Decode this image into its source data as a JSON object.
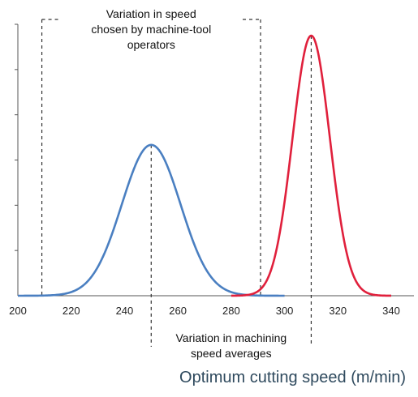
{
  "chart_data": {
    "type": "line",
    "xlabel": "Optimum cutting speed (m/min)",
    "ylabel": "",
    "xlim": [
      200,
      340
    ],
    "ylim": [
      0,
      1.0
    ],
    "x_ticks": [
      200,
      220,
      240,
      260,
      280,
      300,
      320,
      340
    ],
    "y_tick_count": 6,
    "grid": false,
    "series": [
      {
        "color": "#4a7fc1",
        "mean": 250,
        "sd": 11,
        "peak": 0.58,
        "x_range": [
          200,
          300
        ]
      },
      {
        "color": "#e0203c",
        "mean": 310,
        "sd": 7,
        "peak": 1.0,
        "x_range": [
          280,
          340
        ]
      }
    ],
    "annotations": [
      {
        "text": "Variation in speed\nchosen by machine-tool\noperators",
        "span": [
          209,
          291
        ]
      },
      {
        "text": "Variation in machining\nspeed averages",
        "span": [
          250,
          310
        ]
      }
    ]
  },
  "colors": {
    "guide": "#333333",
    "axis": "#555555"
  }
}
